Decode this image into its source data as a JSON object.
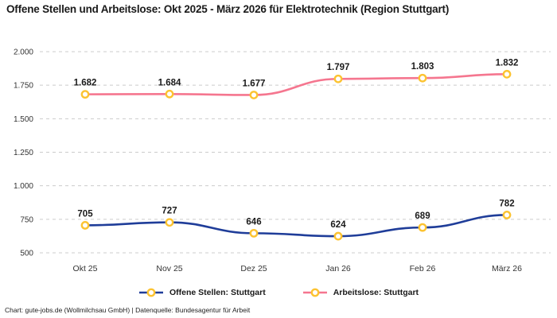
{
  "title": "Offene Stellen und Arbeitslose: Okt 2025 - März 2026 für Elektrotechnik (Region Stuttgart)",
  "footer": "Chart: gute-jobs.de (Wollmilchsau GmbH) | Datenquelle: Bundesagentur für Arbeit",
  "colors": {
    "grid": "#cccccc",
    "axis_text": "#333333",
    "label_text": "#1a1a1a",
    "marker_ring": "#fcc331",
    "marker_fill": "#ffffff",
    "series_open_positions": "#1f3d99",
    "series_unemployed": "#f5768f"
  },
  "chart_data": {
    "type": "line",
    "categories": [
      "Okt 25",
      "Nov 25",
      "Dez 25",
      "Jan 26",
      "Feb 26",
      "März 26"
    ],
    "series": [
      {
        "name": "Offene Stellen: Stuttgart",
        "color": "#1f3d99",
        "values": [
          705,
          727,
          646,
          624,
          689,
          782
        ],
        "value_labels": [
          "705",
          "727",
          "646",
          "624",
          "689",
          "782"
        ]
      },
      {
        "name": "Arbeitslose: Stuttgart",
        "color": "#f5768f",
        "values": [
          1682,
          1684,
          1677,
          1797,
          1803,
          1832
        ],
        "value_labels": [
          "1.682",
          "1.684",
          "1.677",
          "1.797",
          "1.803",
          "1.832"
        ]
      }
    ],
    "title": "Offene Stellen und Arbeitslose: Okt 2025 - März 2026 für Elektrotechnik (Region Stuttgart)",
    "xlabel": "",
    "ylabel": "",
    "ylim": [
      500,
      2000
    ],
    "y_axis": {
      "min": 500,
      "max": 2000,
      "step": 250,
      "tick_labels": [
        "500",
        "750",
        "1.000",
        "1.250",
        "1.500",
        "1.750",
        "2.000"
      ]
    },
    "grid": "horizontal-dashed",
    "legend_position": "bottom",
    "marker_style": "yellow-ring"
  }
}
